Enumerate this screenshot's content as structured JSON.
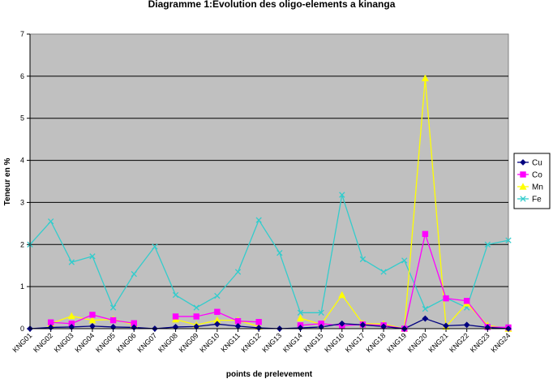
{
  "chart_data": {
    "type": "line",
    "title": "Diagramme 1:Evolution des oligo-elements a kinanga",
    "xlabel": "points de prelevement",
    "ylabel": "Teneur en %",
    "ylim": [
      0,
      7
    ],
    "yticks": [
      "0",
      "1",
      "2",
      "3",
      "4",
      "5",
      "6",
      "7"
    ],
    "grid": true,
    "legend_position": "right",
    "categories": [
      "KNG01",
      "KNG02",
      "KNG03",
      "KNG04",
      "KNG05",
      "KNG06",
      "KNG07",
      "KNG08",
      "KNG09",
      "KNG10",
      "KNG11",
      "KNG12",
      "KNG13",
      "KNG14",
      "KNG15",
      "KNG16",
      "KNG17",
      "KNG18",
      "KNG19",
      "KNG20",
      "KNG21",
      "KNG22",
      "KNG23",
      "KNG24"
    ],
    "series": [
      {
        "name": "Cu",
        "color": "#000080",
        "marker": "diamond",
        "values": [
          0,
          0.03,
          0.04,
          0.06,
          0.04,
          0.03,
          0,
          0.04,
          0.05,
          0.11,
          0.06,
          0.02,
          0,
          0.02,
          0.04,
          0.12,
          0.09,
          0.05,
          0,
          0.24,
          0.07,
          0.09,
          0.03,
          0
        ]
      },
      {
        "name": "Co",
        "color": "#ff00ff",
        "marker": "square",
        "values": [
          null,
          0.15,
          0.12,
          0.33,
          0.2,
          0.13,
          null,
          0.29,
          0.29,
          0.4,
          0.18,
          0.16,
          null,
          0.08,
          0.12,
          0.07,
          0.1,
          0.08,
          0,
          2.25,
          0.72,
          0.66,
          0.04,
          0.03
        ]
      },
      {
        "name": "Mn",
        "color": "#ffff00",
        "marker": "triangle",
        "values": [
          null,
          0.12,
          0.3,
          0.2,
          0.22,
          0.1,
          null,
          0.22,
          0.09,
          0.2,
          0.2,
          0.05,
          null,
          0.25,
          0.1,
          0.8,
          0.12,
          0.11,
          0,
          5.95,
          0.05,
          0.6,
          0.08,
          0
        ]
      },
      {
        "name": "Fe",
        "color": "#33cccc",
        "marker": "x",
        "values": [
          2.0,
          2.55,
          1.58,
          1.72,
          0.5,
          1.3,
          1.95,
          0.8,
          0.5,
          0.78,
          1.35,
          2.58,
          1.8,
          0.38,
          0.38,
          3.18,
          1.65,
          1.35,
          1.62,
          0.47,
          0.73,
          0.5,
          2.0,
          2.1
        ]
      }
    ]
  }
}
